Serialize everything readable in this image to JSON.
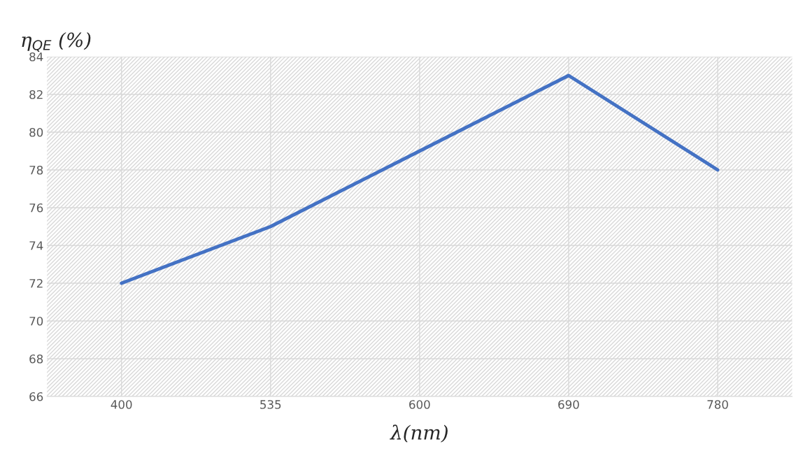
{
  "chart_data": {
    "type": "line",
    "xlabel": "λ(nm)",
    "ylabel": "η$_{QE}$ (%)",
    "categories": [
      "400",
      "535",
      "600",
      "690",
      "780"
    ],
    "series": [
      {
        "color": "#4472c4",
        "values": [
          72,
          75,
          79,
          83,
          78
        ]
      }
    ],
    "ylim": [
      66,
      84
    ],
    "yticks": [
      66,
      68,
      70,
      72,
      74,
      76,
      78,
      80,
      82,
      84
    ],
    "grid": true,
    "marker": "none",
    "line_style": "solid"
  }
}
